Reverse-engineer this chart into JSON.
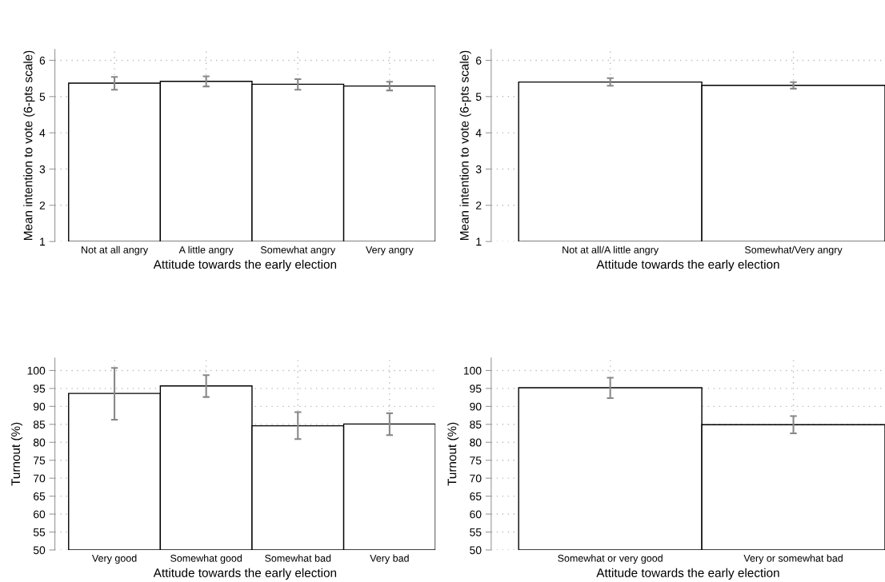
{
  "chart_data": [
    {
      "type": "bar",
      "categories": [
        "Not at all angry",
        "A little angry",
        "Somewhat angry",
        "Very angry"
      ],
      "values": [
        5.37,
        5.42,
        5.34,
        5.29
      ],
      "errors": [
        [
          5.19,
          5.54
        ],
        [
          5.28,
          5.56
        ],
        [
          5.19,
          5.48
        ],
        [
          5.17,
          5.41
        ]
      ],
      "color": "#ffffff",
      "xlabel": "Attitude towards the early election",
      "ylabel": "Mean intention to vote (6-pts scale)",
      "ylim": [
        1,
        6.3
      ],
      "yticks": [
        1,
        2,
        3,
        4,
        5,
        6
      ],
      "grid": true
    },
    {
      "type": "bar",
      "categories": [
        "Not at all/A little angry",
        "Somewhat/Very angry"
      ],
      "values": [
        5.4,
        5.31
      ],
      "errors": [
        [
          5.3,
          5.51
        ],
        [
          5.22,
          5.4
        ]
      ],
      "color": "#ffffff",
      "xlabel": "Attitude towards the early election",
      "ylabel": "Mean intention to vote (6-pts scale)",
      "ylim": [
        1,
        6.3
      ],
      "yticks": [
        1,
        2,
        3,
        4,
        5,
        6
      ],
      "grid": true
    },
    {
      "type": "bar",
      "categories": [
        "Very good",
        "Somewhat good",
        "Somewhat bad",
        "Very bad"
      ],
      "values": [
        93.6,
        95.7,
        84.6,
        85.1
      ],
      "errors": [
        [
          86.3,
          100.7
        ],
        [
          92.6,
          98.7
        ],
        [
          80.9,
          88.4
        ],
        [
          82.0,
          88.1
        ]
      ],
      "color": "#ffffff",
      "xlabel": "Attitude towards the early election",
      "ylabel": "Turnout (%)",
      "ylim": [
        50,
        103.5
      ],
      "yticks": [
        50,
        55,
        60,
        65,
        70,
        75,
        80,
        85,
        90,
        95,
        100
      ],
      "grid": true
    },
    {
      "type": "bar",
      "categories": [
        "Somewhat or very good",
        "Very or somewhat bad"
      ],
      "values": [
        95.2,
        84.9
      ],
      "errors": [
        [
          92.3,
          98.0
        ],
        [
          82.5,
          87.3
        ]
      ],
      "color": "#ffffff",
      "xlabel": "Attitude towards the early election",
      "ylabel": "Turnout (%)",
      "ylim": [
        50,
        103.5
      ],
      "yticks": [
        50,
        55,
        60,
        65,
        70,
        75,
        80,
        85,
        90,
        95,
        100
      ],
      "grid": true
    }
  ]
}
